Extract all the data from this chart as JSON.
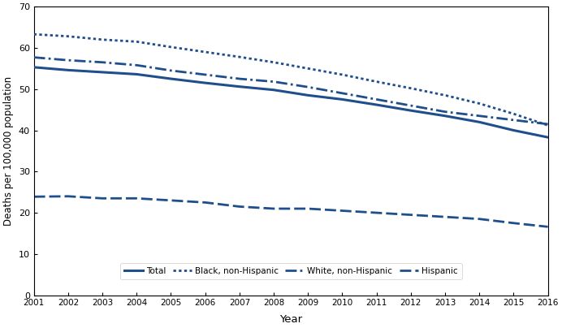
{
  "years": [
    2001,
    2002,
    2003,
    2004,
    2005,
    2006,
    2007,
    2008,
    2009,
    2010,
    2011,
    2012,
    2013,
    2014,
    2015,
    2016
  ],
  "total": [
    55.3,
    54.6,
    54.1,
    53.6,
    52.5,
    51.5,
    50.6,
    49.8,
    48.5,
    47.5,
    46.2,
    44.8,
    43.5,
    42.0,
    40.0,
    38.3
  ],
  "black_nh": [
    63.3,
    62.8,
    62.0,
    61.5,
    60.2,
    59.0,
    57.8,
    56.5,
    55.0,
    53.5,
    51.8,
    50.2,
    48.5,
    46.5,
    44.0,
    41.2
  ],
  "white_nh": [
    57.7,
    57.0,
    56.5,
    55.8,
    54.5,
    53.5,
    52.5,
    51.8,
    50.5,
    49.0,
    47.5,
    46.0,
    44.5,
    43.5,
    42.5,
    41.5
  ],
  "hispanic": [
    23.9,
    24.0,
    23.5,
    23.5,
    23.0,
    22.5,
    21.5,
    21.0,
    21.0,
    20.5,
    20.0,
    19.5,
    19.0,
    18.5,
    17.5,
    16.6
  ],
  "line_color": "#1F4E8C",
  "ylabel": "Deaths per 100,000 population",
  "xlabel": "Year",
  "ylim": [
    0,
    70
  ],
  "yticks": [
    0,
    10,
    20,
    30,
    40,
    50,
    60,
    70
  ],
  "legend_labels": [
    "Total",
    "Black, non-Hispanic",
    "White, non-Hispanic",
    "Hispanic"
  ]
}
